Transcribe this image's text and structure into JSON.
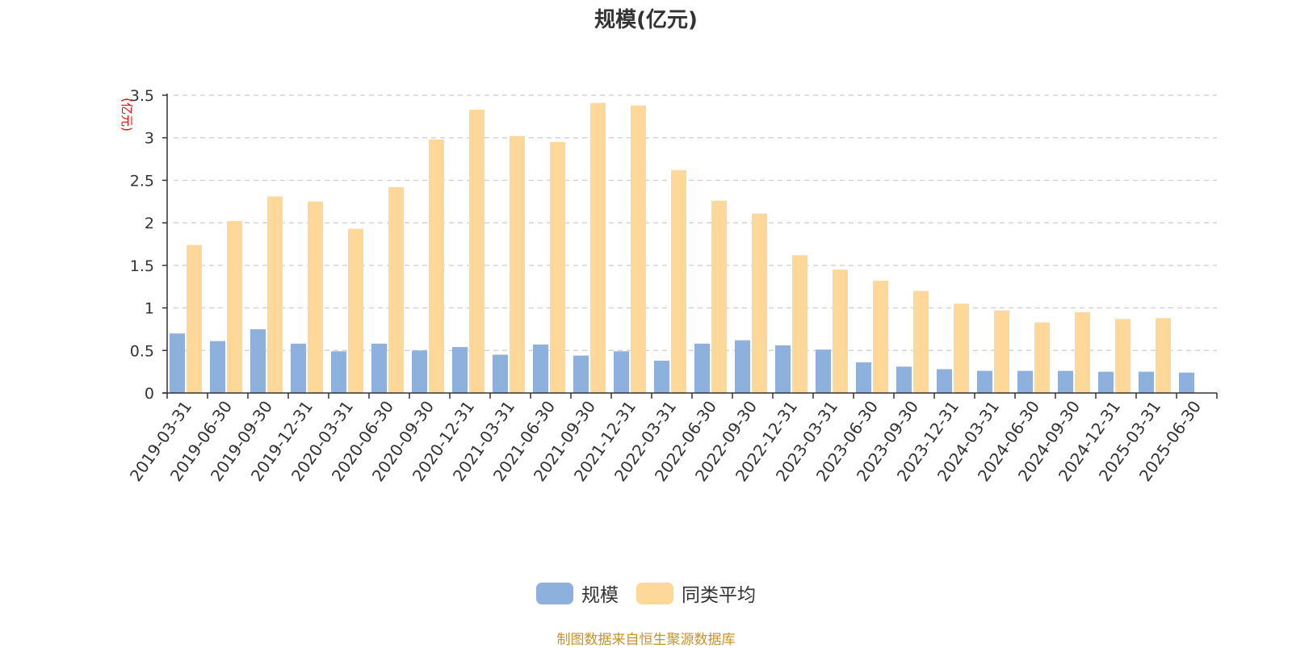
{
  "chart_data": {
    "type": "bar",
    "title": "规模(亿元)",
    "y_unit_label": "(亿元)",
    "xlabel": "",
    "ylabel": "",
    "ylim": [
      0,
      3.5
    ],
    "y_ticks": [
      "0",
      "0.5",
      "1",
      "1.5",
      "2",
      "2.5",
      "3",
      "3.5"
    ],
    "grid": true,
    "legend_position": "bottom",
    "categories": [
      "2019-03-31",
      "2019-06-30",
      "2019-09-30",
      "2019-12-31",
      "2020-03-31",
      "2020-06-30",
      "2020-09-30",
      "2020-12-31",
      "2021-03-31",
      "2021-06-30",
      "2021-09-30",
      "2021-12-31",
      "2022-03-31",
      "2022-06-30",
      "2022-09-30",
      "2022-12-31",
      "2023-03-31",
      "2023-06-30",
      "2023-09-30",
      "2023-12-31",
      "2024-03-31",
      "2024-06-30",
      "2024-09-30",
      "2024-12-31",
      "2025-03-31",
      "2025-06-30"
    ],
    "series": [
      {
        "name": "规模",
        "color": "#8eb0dd",
        "values": [
          0.7,
          0.61,
          0.75,
          0.58,
          0.49,
          0.58,
          0.5,
          0.54,
          0.45,
          0.57,
          0.44,
          0.49,
          0.38,
          0.58,
          0.62,
          0.56,
          0.51,
          0.36,
          0.31,
          0.28,
          0.26,
          0.26,
          0.26,
          0.25,
          0.25,
          0.24
        ]
      },
      {
        "name": "同类平均",
        "color": "#fed898",
        "values": [
          1.74,
          2.02,
          2.31,
          2.25,
          1.93,
          2.42,
          2.98,
          3.33,
          3.02,
          2.95,
          3.41,
          3.38,
          2.62,
          2.26,
          2.11,
          1.62,
          1.45,
          1.32,
          1.2,
          1.05,
          0.97,
          0.83,
          0.95,
          0.87,
          0.88,
          null
        ]
      }
    ]
  },
  "colors": {
    "axis": "#333333",
    "grid": "#cccccc",
    "unit_label": "#ff0000",
    "source": "#c8922a"
  },
  "source_note": "制图数据来自恒生聚源数据库"
}
